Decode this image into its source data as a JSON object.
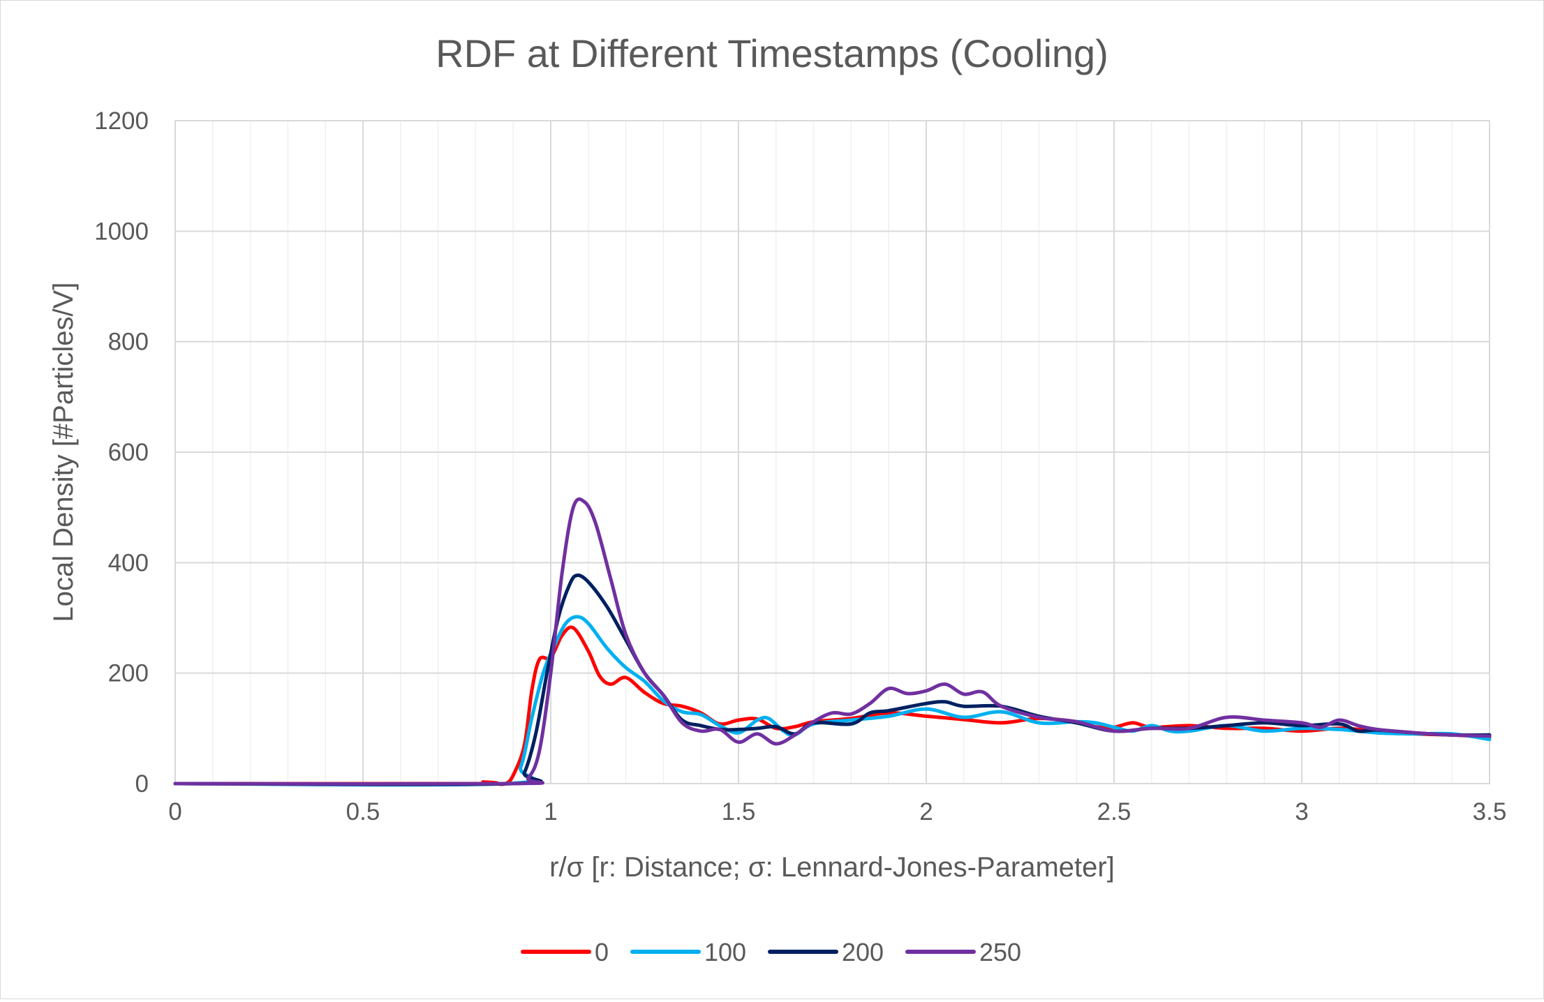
{
  "chart_data": {
    "type": "line",
    "title": "RDF at Different Timestamps (Cooling)",
    "xlabel": "r/σ [r: Distance; σ: Lennard-Jones-Parameter]",
    "ylabel": "Local Density [#Particles/V]",
    "xlim": [
      0,
      3.5
    ],
    "ylim": [
      0,
      1200
    ],
    "x_ticks": [
      0,
      0.5,
      1,
      1.5,
      2,
      2.5,
      3,
      3.5
    ],
    "x_tick_labels": [
      "0",
      "0.5",
      "1",
      "1.5",
      "2",
      "2.5",
      "3",
      "3.5"
    ],
    "x_minor_step": 0.1,
    "y_ticks": [
      0,
      200,
      400,
      600,
      800,
      1000,
      1200
    ],
    "y_tick_labels": [
      "0",
      "200",
      "400",
      "600",
      "800",
      "1000",
      "1200"
    ],
    "grid": true,
    "legend_position": "bottom",
    "series": [
      {
        "name": "0",
        "color": "#ff0000",
        "points": [
          [
            0,
            0
          ],
          [
            0.79,
            0
          ],
          [
            0.82,
            3
          ],
          [
            0.85,
            0
          ],
          [
            0.88,
            0
          ],
          [
            0.9,
            15
          ],
          [
            0.93,
            70
          ],
          [
            0.95,
            170
          ],
          [
            0.97,
            225
          ],
          [
            1.0,
            228
          ],
          [
            1.03,
            268
          ],
          [
            1.06,
            282
          ],
          [
            1.1,
            240
          ],
          [
            1.13,
            195
          ],
          [
            1.16,
            180
          ],
          [
            1.2,
            192
          ],
          [
            1.25,
            165
          ],
          [
            1.3,
            145
          ],
          [
            1.35,
            140
          ],
          [
            1.4,
            128
          ],
          [
            1.45,
            108
          ],
          [
            1.5,
            115
          ],
          [
            1.55,
            117
          ],
          [
            1.6,
            100
          ],
          [
            1.65,
            103
          ],
          [
            1.7,
            112
          ],
          [
            1.8,
            118
          ],
          [
            1.9,
            128
          ],
          [
            2.0,
            122
          ],
          [
            2.1,
            116
          ],
          [
            2.2,
            110
          ],
          [
            2.3,
            118
          ],
          [
            2.4,
            112
          ],
          [
            2.45,
            103
          ],
          [
            2.5,
            102
          ],
          [
            2.55,
            110
          ],
          [
            2.6,
            102
          ],
          [
            2.7,
            105
          ],
          [
            2.8,
            100
          ],
          [
            2.9,
            100
          ],
          [
            3.0,
            95
          ],
          [
            3.1,
            100
          ],
          [
            3.2,
            95
          ],
          [
            3.3,
            90
          ],
          [
            3.4,
            88
          ],
          [
            3.5,
            84
          ]
        ]
      },
      {
        "name": "100",
        "color": "#00b0f0",
        "points": [
          [
            0,
            0
          ],
          [
            0.88,
            0
          ],
          [
            0.92,
            30
          ],
          [
            0.95,
            120
          ],
          [
            0.98,
            200
          ],
          [
            1.01,
            250
          ],
          [
            1.04,
            290
          ],
          [
            1.07,
            302
          ],
          [
            1.1,
            290
          ],
          [
            1.15,
            245
          ],
          [
            1.2,
            210
          ],
          [
            1.25,
            185
          ],
          [
            1.3,
            150
          ],
          [
            1.35,
            130
          ],
          [
            1.4,
            125
          ],
          [
            1.45,
            105
          ],
          [
            1.5,
            92
          ],
          [
            1.55,
            115
          ],
          [
            1.58,
            118
          ],
          [
            1.62,
            95
          ],
          [
            1.65,
            88
          ],
          [
            1.7,
            108
          ],
          [
            1.8,
            115
          ],
          [
            1.9,
            122
          ],
          [
            2.0,
            135
          ],
          [
            2.1,
            120
          ],
          [
            2.2,
            130
          ],
          [
            2.3,
            110
          ],
          [
            2.4,
            112
          ],
          [
            2.45,
            110
          ],
          [
            2.5,
            102
          ],
          [
            2.55,
            95
          ],
          [
            2.6,
            105
          ],
          [
            2.65,
            95
          ],
          [
            2.7,
            95
          ],
          [
            2.8,
            105
          ],
          [
            2.9,
            95
          ],
          [
            3.0,
            100
          ],
          [
            3.1,
            98
          ],
          [
            3.2,
            92
          ],
          [
            3.3,
            90
          ],
          [
            3.4,
            90
          ],
          [
            3.5,
            80
          ]
        ]
      },
      {
        "name": "200",
        "color": "#002060",
        "points": [
          [
            0,
            0
          ],
          [
            0.9,
            0
          ],
          [
            0.93,
            20
          ],
          [
            0.96,
            90
          ],
          [
            0.99,
            200
          ],
          [
            1.02,
            300
          ],
          [
            1.05,
            360
          ],
          [
            1.07,
            377
          ],
          [
            1.1,
            365
          ],
          [
            1.15,
            320
          ],
          [
            1.2,
            260
          ],
          [
            1.25,
            200
          ],
          [
            1.3,
            160
          ],
          [
            1.35,
            115
          ],
          [
            1.4,
            105
          ],
          [
            1.45,
            98
          ],
          [
            1.5,
            98
          ],
          [
            1.55,
            100
          ],
          [
            1.6,
            103
          ],
          [
            1.65,
            90
          ],
          [
            1.7,
            110
          ],
          [
            1.8,
            108
          ],
          [
            1.85,
            128
          ],
          [
            1.9,
            132
          ],
          [
            2.0,
            145
          ],
          [
            2.05,
            148
          ],
          [
            2.1,
            140
          ],
          [
            2.2,
            140
          ],
          [
            2.3,
            122
          ],
          [
            2.4,
            110
          ],
          [
            2.5,
            95
          ],
          [
            2.6,
            100
          ],
          [
            2.7,
            100
          ],
          [
            2.8,
            105
          ],
          [
            2.9,
            110
          ],
          [
            3.0,
            105
          ],
          [
            3.1,
            108
          ],
          [
            3.15,
            95
          ],
          [
            3.2,
            97
          ],
          [
            3.3,
            92
          ],
          [
            3.4,
            88
          ],
          [
            3.5,
            88
          ]
        ]
      },
      {
        "name": "250",
        "color": "#7030a0",
        "points": [
          [
            0,
            0
          ],
          [
            0.9,
            0
          ],
          [
            0.94,
            10
          ],
          [
            0.97,
            60
          ],
          [
            1.0,
            200
          ],
          [
            1.03,
            380
          ],
          [
            1.06,
            500
          ],
          [
            1.09,
            510
          ],
          [
            1.12,
            470
          ],
          [
            1.16,
            370
          ],
          [
            1.2,
            270
          ],
          [
            1.25,
            200
          ],
          [
            1.3,
            160
          ],
          [
            1.35,
            110
          ],
          [
            1.4,
            95
          ],
          [
            1.45,
            98
          ],
          [
            1.5,
            75
          ],
          [
            1.55,
            90
          ],
          [
            1.6,
            72
          ],
          [
            1.65,
            88
          ],
          [
            1.7,
            112
          ],
          [
            1.75,
            128
          ],
          [
            1.8,
            126
          ],
          [
            1.85,
            145
          ],
          [
            1.9,
            172
          ],
          [
            1.95,
            163
          ],
          [
            2.0,
            168
          ],
          [
            2.05,
            180
          ],
          [
            2.1,
            162
          ],
          [
            2.15,
            166
          ],
          [
            2.2,
            140
          ],
          [
            2.3,
            120
          ],
          [
            2.4,
            112
          ],
          [
            2.5,
            95
          ],
          [
            2.6,
            100
          ],
          [
            2.7,
            100
          ],
          [
            2.8,
            120
          ],
          [
            2.9,
            115
          ],
          [
            3.0,
            110
          ],
          [
            3.05,
            102
          ],
          [
            3.1,
            115
          ],
          [
            3.15,
            105
          ],
          [
            3.2,
            98
          ],
          [
            3.3,
            92
          ],
          [
            3.4,
            88
          ],
          [
            3.5,
            86
          ]
        ]
      }
    ]
  }
}
